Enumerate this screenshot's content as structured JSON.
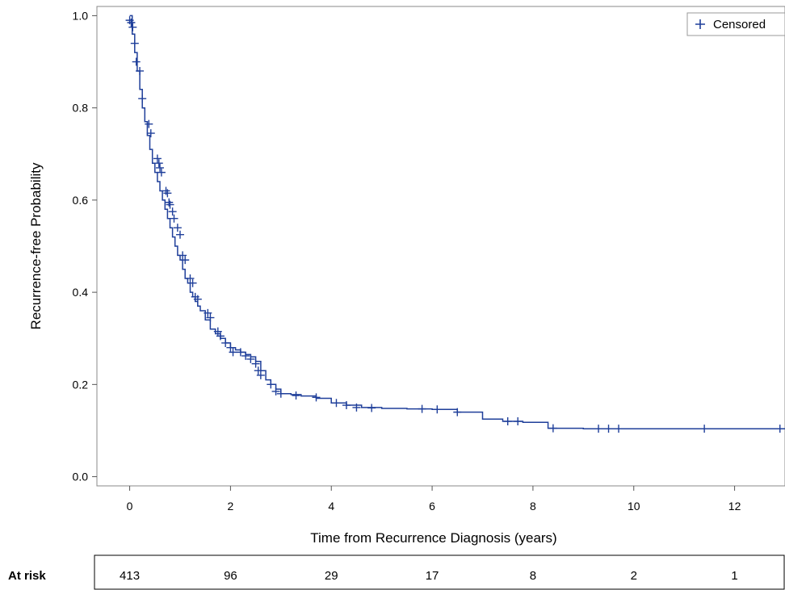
{
  "chart_data": {
    "type": "line",
    "xlabel": "Time from Recurrence Diagnosis (years)",
    "ylabel": "Recurrence-free Probability",
    "xlim": [
      -0.65,
      13
    ],
    "ylim": [
      -0.02,
      1.02
    ],
    "x_ticks": [
      0,
      2,
      4,
      6,
      8,
      10,
      12
    ],
    "y_ticks": [
      0.0,
      0.2,
      0.4,
      0.6,
      0.8,
      1.0
    ],
    "x_tick_labels": [
      "0",
      "2",
      "4",
      "6",
      "8",
      "10",
      "12"
    ],
    "y_tick_labels": [
      "0.0",
      "0.2",
      "0.4",
      "0.6",
      "0.8",
      "1.0"
    ],
    "grid": false,
    "legend": {
      "placement": "top-right",
      "entries": [
        "Censored"
      ],
      "marker": "+"
    },
    "color": "#1f3f9a",
    "series": [
      {
        "step": true,
        "x": [
          0,
          0.05,
          0.1,
          0.15,
          0.2,
          0.25,
          0.3,
          0.35,
          0.4,
          0.45,
          0.5,
          0.55,
          0.6,
          0.65,
          0.7,
          0.75,
          0.8,
          0.85,
          0.9,
          0.95,
          1.0,
          1.05,
          1.1,
          1.15,
          1.2,
          1.25,
          1.3,
          1.35,
          1.4,
          1.5,
          1.6,
          1.7,
          1.8,
          1.9,
          2.0,
          2.1,
          2.2,
          2.3,
          2.4,
          2.5,
          2.6,
          2.7,
          2.8,
          2.9,
          3.0,
          3.2,
          3.4,
          3.7,
          4.0,
          4.3,
          4.6,
          5.0,
          5.5,
          6.0,
          6.5,
          7.0,
          7.4,
          7.8,
          8.3,
          9.0,
          10.0,
          11.0,
          12.0,
          13.0
        ],
        "y": [
          1.0,
          0.96,
          0.92,
          0.88,
          0.84,
          0.8,
          0.77,
          0.74,
          0.71,
          0.68,
          0.66,
          0.64,
          0.62,
          0.6,
          0.58,
          0.56,
          0.54,
          0.52,
          0.5,
          0.48,
          0.47,
          0.45,
          0.43,
          0.42,
          0.4,
          0.39,
          0.38,
          0.37,
          0.36,
          0.34,
          0.32,
          0.31,
          0.3,
          0.29,
          0.28,
          0.275,
          0.27,
          0.265,
          0.26,
          0.25,
          0.23,
          0.21,
          0.2,
          0.19,
          0.18,
          0.178,
          0.175,
          0.17,
          0.16,
          0.155,
          0.15,
          0.148,
          0.147,
          0.146,
          0.14,
          0.125,
          0.12,
          0.118,
          0.105,
          0.104,
          0.104,
          0.104,
          0.104,
          0.104
        ]
      }
    ],
    "censored": [
      {
        "x": 0.0,
        "y": 0.99
      },
      {
        "x": 0.03,
        "y": 0.985
      },
      {
        "x": 0.06,
        "y": 0.975
      },
      {
        "x": 0.1,
        "y": 0.94
      },
      {
        "x": 0.13,
        "y": 0.9
      },
      {
        "x": 0.2,
        "y": 0.88
      },
      {
        "x": 0.25,
        "y": 0.82
      },
      {
        "x": 0.38,
        "y": 0.765
      },
      {
        "x": 0.42,
        "y": 0.745
      },
      {
        "x": 0.55,
        "y": 0.69
      },
      {
        "x": 0.58,
        "y": 0.68
      },
      {
        "x": 0.6,
        "y": 0.67
      },
      {
        "x": 0.63,
        "y": 0.66
      },
      {
        "x": 0.72,
        "y": 0.62
      },
      {
        "x": 0.75,
        "y": 0.615
      },
      {
        "x": 0.78,
        "y": 0.595
      },
      {
        "x": 0.8,
        "y": 0.59
      },
      {
        "x": 0.85,
        "y": 0.575
      },
      {
        "x": 0.88,
        "y": 0.56
      },
      {
        "x": 0.95,
        "y": 0.54
      },
      {
        "x": 1.0,
        "y": 0.525
      },
      {
        "x": 1.05,
        "y": 0.48
      },
      {
        "x": 1.1,
        "y": 0.47
      },
      {
        "x": 1.2,
        "y": 0.43
      },
      {
        "x": 1.25,
        "y": 0.42
      },
      {
        "x": 1.3,
        "y": 0.39
      },
      {
        "x": 1.35,
        "y": 0.385
      },
      {
        "x": 1.55,
        "y": 0.355
      },
      {
        "x": 1.6,
        "y": 0.345
      },
      {
        "x": 1.75,
        "y": 0.315
      },
      {
        "x": 1.8,
        "y": 0.305
      },
      {
        "x": 1.9,
        "y": 0.29
      },
      {
        "x": 2.0,
        "y": 0.28
      },
      {
        "x": 2.05,
        "y": 0.27
      },
      {
        "x": 2.2,
        "y": 0.27
      },
      {
        "x": 2.3,
        "y": 0.262
      },
      {
        "x": 2.4,
        "y": 0.255
      },
      {
        "x": 2.5,
        "y": 0.245
      },
      {
        "x": 2.55,
        "y": 0.23
      },
      {
        "x": 2.6,
        "y": 0.22
      },
      {
        "x": 2.8,
        "y": 0.2
      },
      {
        "x": 2.9,
        "y": 0.185
      },
      {
        "x": 3.0,
        "y": 0.18
      },
      {
        "x": 3.3,
        "y": 0.176
      },
      {
        "x": 3.7,
        "y": 0.172
      },
      {
        "x": 4.1,
        "y": 0.16
      },
      {
        "x": 4.3,
        "y": 0.155
      },
      {
        "x": 4.5,
        "y": 0.15
      },
      {
        "x": 4.8,
        "y": 0.149
      },
      {
        "x": 5.8,
        "y": 0.147
      },
      {
        "x": 6.1,
        "y": 0.146
      },
      {
        "x": 6.5,
        "y": 0.14
      },
      {
        "x": 7.5,
        "y": 0.12
      },
      {
        "x": 7.7,
        "y": 0.12
      },
      {
        "x": 8.4,
        "y": 0.105
      },
      {
        "x": 9.3,
        "y": 0.104
      },
      {
        "x": 9.5,
        "y": 0.104
      },
      {
        "x": 9.7,
        "y": 0.104
      },
      {
        "x": 11.4,
        "y": 0.104
      },
      {
        "x": 12.9,
        "y": 0.104
      }
    ]
  },
  "at_risk": {
    "label": "At risk",
    "values": [
      "413",
      "96",
      "29",
      "17",
      "8",
      "2",
      "1"
    ]
  }
}
